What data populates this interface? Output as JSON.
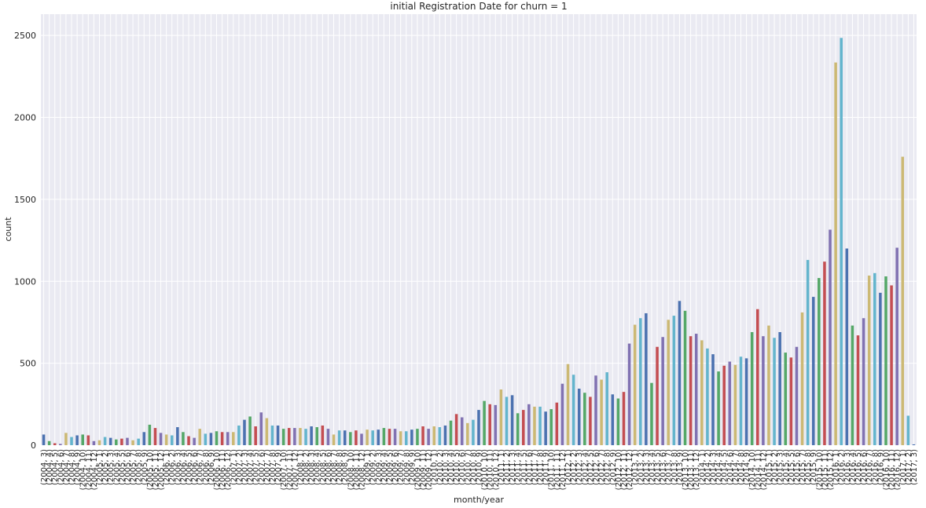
{
  "chart_data": {
    "type": "bar",
    "title": "initial Registration Date for churn = 1",
    "xlabel": "month/year",
    "ylabel": "count",
    "categories": [
      "(2004, 3)",
      "(2004, 4)",
      "(2004, 5)",
      "(2004, 6)",
      "(2004, 7)",
      "(2004, 8)",
      "(2004, 9)",
      "(2004, 10)",
      "(2004, 11)",
      "(2004, 12)",
      "(2005, 1)",
      "(2005, 2)",
      "(2005, 3)",
      "(2005, 4)",
      "(2005, 5)",
      "(2005, 6)",
      "(2005, 7)",
      "(2005, 8)",
      "(2005, 9)",
      "(2005, 10)",
      "(2005, 11)",
      "(2005, 12)",
      "(2006, 1)",
      "(2006, 2)",
      "(2006, 3)",
      "(2006, 4)",
      "(2006, 5)",
      "(2006, 6)",
      "(2006, 7)",
      "(2006, 8)",
      "(2006, 9)",
      "(2006, 10)",
      "(2006, 11)",
      "(2006, 12)",
      "(2007, 1)",
      "(2007, 2)",
      "(2007, 3)",
      "(2007, 4)",
      "(2007, 5)",
      "(2007, 6)",
      "(2007, 7)",
      "(2007, 8)",
      "(2007, 9)",
      "(2007, 10)",
      "(2007, 11)",
      "(2007, 12)",
      "(2008, 1)",
      "(2008, 2)",
      "(2008, 3)",
      "(2008, 4)",
      "(2008, 5)",
      "(2008, 6)",
      "(2008, 7)",
      "(2008, 8)",
      "(2008, 9)",
      "(2008, 10)",
      "(2008, 11)",
      "(2008, 12)",
      "(2009, 1)",
      "(2009, 2)",
      "(2009, 3)",
      "(2009, 4)",
      "(2009, 5)",
      "(2009, 6)",
      "(2009, 7)",
      "(2009, 8)",
      "(2009, 9)",
      "(2009, 10)",
      "(2009, 11)",
      "(2009, 12)",
      "(2010, 1)",
      "(2010, 2)",
      "(2010, 3)",
      "(2010, 4)",
      "(2010, 5)",
      "(2010, 6)",
      "(2010, 7)",
      "(2010, 8)",
      "(2010, 9)",
      "(2010, 10)",
      "(2010, 11)",
      "(2010, 12)",
      "(2011, 1)",
      "(2011, 2)",
      "(2011, 3)",
      "(2011, 4)",
      "(2011, 5)",
      "(2011, 6)",
      "(2011, 7)",
      "(2011, 8)",
      "(2011, 9)",
      "(2011, 10)",
      "(2011, 11)",
      "(2011, 12)",
      "(2012, 1)",
      "(2012, 2)",
      "(2012, 3)",
      "(2012, 4)",
      "(2012, 5)",
      "(2012, 6)",
      "(2012, 7)",
      "(2012, 8)",
      "(2012, 9)",
      "(2012, 10)",
      "(2012, 11)",
      "(2012, 12)",
      "(2013, 1)",
      "(2013, 2)",
      "(2013, 3)",
      "(2013, 4)",
      "(2013, 5)",
      "(2013, 6)",
      "(2013, 7)",
      "(2013, 8)",
      "(2013, 9)",
      "(2013, 10)",
      "(2013, 11)",
      "(2013, 12)",
      "(2014, 1)",
      "(2014, 2)",
      "(2014, 3)",
      "(2014, 4)",
      "(2014, 5)",
      "(2014, 6)",
      "(2014, 7)",
      "(2014, 8)",
      "(2014, 9)",
      "(2014, 10)",
      "(2014, 11)",
      "(2014, 12)",
      "(2015, 1)",
      "(2015, 2)",
      "(2015, 3)",
      "(2015, 4)",
      "(2015, 5)",
      "(2015, 6)",
      "(2015, 7)",
      "(2015, 8)",
      "(2015, 9)",
      "(2015, 10)",
      "(2015, 11)",
      "(2015, 12)",
      "(2016, 1)",
      "(2016, 2)",
      "(2016, 3)",
      "(2016, 4)",
      "(2016, 5)",
      "(2016, 6)",
      "(2016, 7)",
      "(2016, 8)",
      "(2016, 9)",
      "(2016, 10)",
      "(2016, 11)",
      "(2016, 12)",
      "(2017, 1)",
      "(2017, 2)",
      "(2017, 3)"
    ],
    "values": [
      65,
      25,
      12,
      8,
      75,
      50,
      60,
      65,
      60,
      25,
      30,
      50,
      45,
      35,
      40,
      45,
      30,
      40,
      80,
      125,
      105,
      75,
      65,
      60,
      110,
      80,
      55,
      45,
      100,
      70,
      75,
      85,
      80,
      80,
      80,
      120,
      155,
      175,
      115,
      200,
      165,
      120,
      120,
      100,
      105,
      105,
      105,
      100,
      115,
      110,
      120,
      100,
      65,
      90,
      90,
      80,
      90,
      70,
      95,
      90,
      95,
      105,
      100,
      100,
      85,
      85,
      95,
      100,
      115,
      100,
      115,
      110,
      120,
      150,
      190,
      170,
      135,
      155,
      215,
      270,
      250,
      245,
      340,
      295,
      305,
      195,
      215,
      250,
      235,
      235,
      205,
      220,
      260,
      375,
      495,
      430,
      345,
      320,
      295,
      425,
      400,
      445,
      310,
      285,
      325,
      620,
      735,
      775,
      805,
      380,
      600,
      660,
      765,
      790,
      880,
      820,
      665,
      680,
      640,
      590,
      555,
      450,
      485,
      510,
      490,
      540,
      530,
      690,
      830,
      665,
      730,
      655,
      690,
      565,
      535,
      600,
      810,
      1130,
      905,
      1020,
      1120,
      1315,
      2335,
      2485,
      1200,
      730,
      670,
      775,
      1035,
      1050,
      930,
      1030,
      975,
      1205,
      1760,
      180,
      5
    ],
    "colors": [
      "#4C72B0",
      "#55A868",
      "#C44E52",
      "#8172B2",
      "#CCB974",
      "#64B5CD"
    ],
    "ylim": [
      0,
      2630
    ],
    "yticks": [
      0,
      500,
      1000,
      1500,
      2000,
      2500
    ],
    "grid": true
  }
}
